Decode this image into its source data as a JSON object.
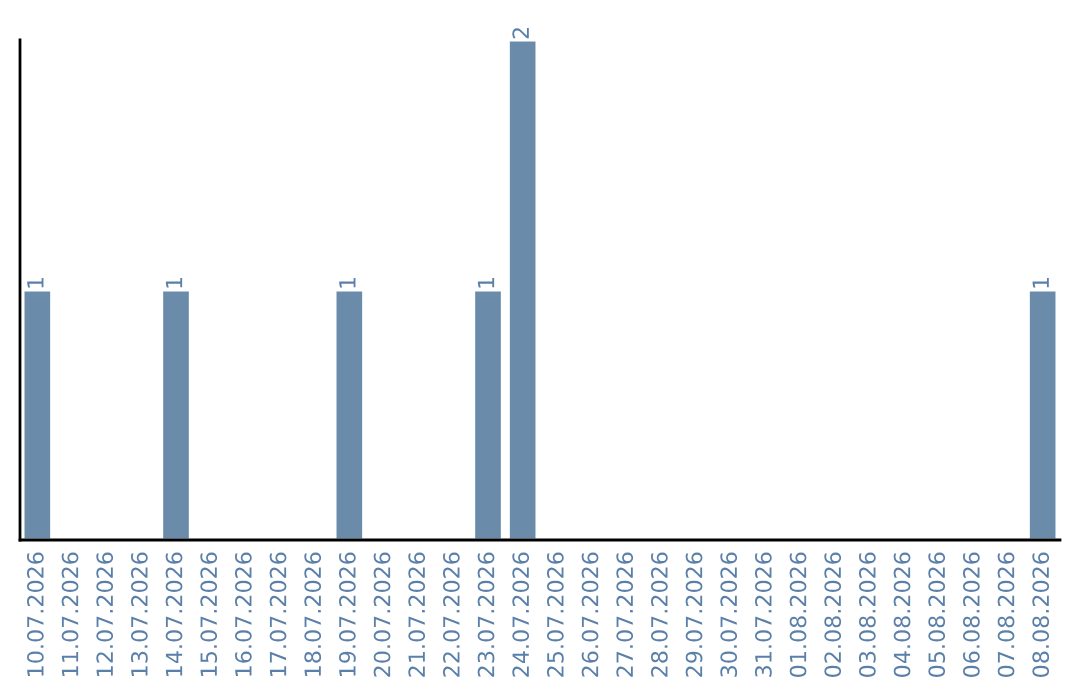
{
  "chart_data": {
    "type": "bar",
    "categories": [
      "10.07.2026",
      "11.07.2026",
      "12.07.2026",
      "13.07.2026",
      "14.07.2026",
      "15.07.2026",
      "16.07.2026",
      "17.07.2026",
      "18.07.2026",
      "19.07.2026",
      "20.07.2026",
      "21.07.2026",
      "22.07.2026",
      "23.07.2026",
      "24.07.2026",
      "25.07.2026",
      "26.07.2026",
      "27.07.2026",
      "28.07.2026",
      "29.07.2026",
      "30.07.2026",
      "31.07.2026",
      "01.08.2026",
      "02.08.2026",
      "03.08.2026",
      "04.08.2026",
      "05.08.2026",
      "06.08.2026",
      "07.08.2026",
      "08.08.2026"
    ],
    "values": [
      1,
      null,
      null,
      null,
      1,
      null,
      null,
      null,
      null,
      1,
      null,
      null,
      null,
      1,
      2,
      null,
      null,
      null,
      null,
      null,
      null,
      null,
      null,
      null,
      null,
      null,
      null,
      null,
      null,
      1
    ],
    "color": "#6a8caa",
    "ylim": [
      0,
      2
    ],
    "tick_labels": "x",
    "value_labels": [
      "1",
      null,
      null,
      null,
      "1",
      null,
      null,
      null,
      null,
      "1",
      null,
      null,
      null,
      "1",
      "2",
      null,
      null,
      null,
      null,
      null,
      null,
      null,
      null,
      null,
      null,
      null,
      null,
      null,
      null,
      "1"
    ]
  }
}
